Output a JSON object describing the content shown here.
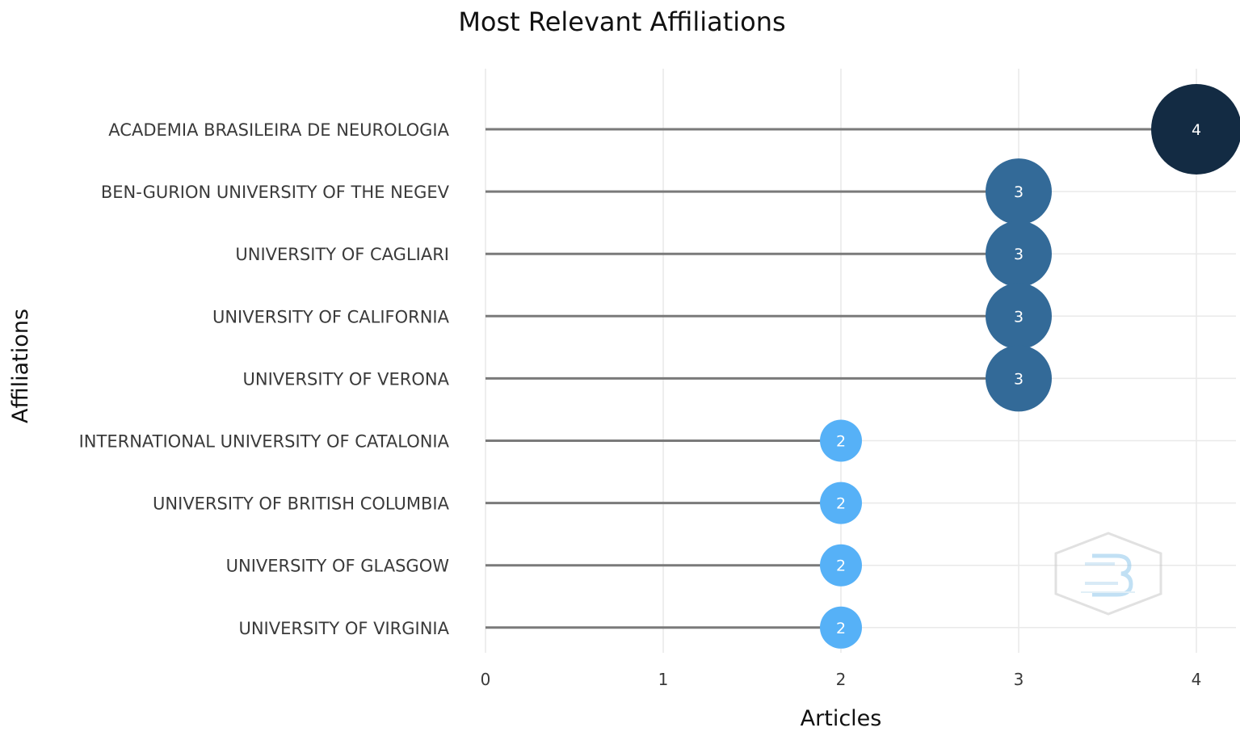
{
  "chart_data": {
    "type": "scatter",
    "title": "Most Relevant Affiliations",
    "xlabel": "Articles",
    "ylabel": "Affiliations",
    "xlim": [
      0,
      4
    ],
    "xticks": [
      0,
      1,
      2,
      3,
      4
    ],
    "grid": true,
    "legend": "none",
    "categories": [
      "ACADEMIA BRASILEIRA DE NEUROLOGIA",
      "BEN-GURION UNIVERSITY OF THE NEGEV",
      "UNIVERSITY OF CAGLIARI",
      "UNIVERSITY OF CALIFORNIA",
      "UNIVERSITY OF VERONA",
      "INTERNATIONAL UNIVERSITY OF CATALONIA",
      "UNIVERSITY OF BRITISH COLUMBIA",
      "UNIVERSITY OF GLASGOW",
      "UNIVERSITY OF VIRGINIA"
    ],
    "values": [
      4,
      3,
      3,
      3,
      3,
      2,
      2,
      2,
      2
    ],
    "color_scale": {
      "low": "#56b1f7",
      "mid": "#336a98",
      "high": "#132b43"
    }
  },
  "watermark": {
    "name": "bibliometrix-logo-watermark"
  }
}
